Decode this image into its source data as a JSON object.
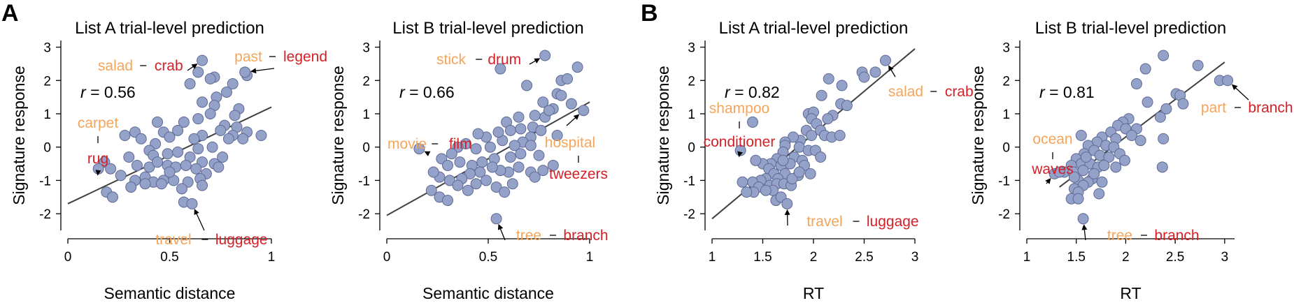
{
  "panel_letters": [
    "A",
    "B"
  ],
  "colors": {
    "point_fill": "#94a1c8",
    "point_stroke": "#5e6a94",
    "fit_line": "#404040",
    "cue_word": "#f5a55a",
    "target_word": "#d62027",
    "dash": "#000000"
  },
  "chart_data": [
    {
      "type": "scatter",
      "title": "List A trial-level prediction",
      "xlabel": "Semantic distance",
      "ylabel": "Signature response",
      "xlim": [
        0,
        1
      ],
      "ylim": [
        -2.5,
        3.2
      ],
      "xticks": [
        0,
        0.5,
        1
      ],
      "xticklabels": [
        "0",
        "0.5",
        "1"
      ],
      "yticks": [
        -2,
        -1,
        0,
        1,
        2,
        3
      ],
      "yticklabels": [
        "-2",
        "-1",
        "0",
        "1",
        "2",
        "3"
      ],
      "r_text": "= 0.56",
      "fit": [
        [
          0,
          -1.7
        ],
        [
          1,
          1.2
        ]
      ],
      "points": [
        [
          0.66,
          2.6
        ],
        [
          0.64,
          2.25
        ],
        [
          0.72,
          2.1
        ],
        [
          0.7,
          2.05
        ],
        [
          0.88,
          2.15
        ],
        [
          0.87,
          2.25
        ],
        [
          0.6,
          1.9
        ],
        [
          0.81,
          1.9
        ],
        [
          0.78,
          1.65
        ],
        [
          0.73,
          1.5
        ],
        [
          0.66,
          1.35
        ],
        [
          0.84,
          1.15
        ],
        [
          0.72,
          1.25
        ],
        [
          0.82,
          0.95
        ],
        [
          0.7,
          1.0
        ],
        [
          0.64,
          0.85
        ],
        [
          0.57,
          0.75
        ],
        [
          0.44,
          0.75
        ],
        [
          0.33,
          0.45
        ],
        [
          0.28,
          0.35
        ],
        [
          0.47,
          0.45
        ],
        [
          0.36,
          0.25
        ],
        [
          0.5,
          0.3
        ],
        [
          0.54,
          0.5
        ],
        [
          0.77,
          0.65
        ],
        [
          0.83,
          0.6
        ],
        [
          0.88,
          0.45
        ],
        [
          0.81,
          0.35
        ],
        [
          0.86,
          0.25
        ],
        [
          0.95,
          0.35
        ],
        [
          0.75,
          0.5
        ],
        [
          0.66,
          0.35
        ],
        [
          0.62,
          0.25
        ],
        [
          0.43,
          0.1
        ],
        [
          0.4,
          -0.1
        ],
        [
          0.3,
          -0.3
        ],
        [
          0.42,
          -0.25
        ],
        [
          0.49,
          -0.2
        ],
        [
          0.54,
          -0.15
        ],
        [
          0.64,
          -0.05
        ],
        [
          0.71,
          0.0
        ],
        [
          0.79,
          0.25
        ],
        [
          0.6,
          -0.3
        ],
        [
          0.66,
          -0.45
        ],
        [
          0.72,
          -0.5
        ],
        [
          0.76,
          -0.3
        ],
        [
          0.49,
          -0.55
        ],
        [
          0.53,
          -0.6
        ],
        [
          0.58,
          -0.55
        ],
        [
          0.63,
          -0.65
        ],
        [
          0.68,
          -0.8
        ],
        [
          0.4,
          -0.6
        ],
        [
          0.34,
          -0.55
        ],
        [
          0.18,
          -0.45
        ],
        [
          0.15,
          -0.65
        ],
        [
          0.21,
          -0.65
        ],
        [
          0.26,
          -0.85
        ],
        [
          0.33,
          -1.0
        ],
        [
          0.38,
          -0.9
        ],
        [
          0.42,
          -1.05
        ],
        [
          0.47,
          -1.0
        ],
        [
          0.52,
          -1.0
        ],
        [
          0.59,
          -1.05
        ],
        [
          0.65,
          -0.95
        ],
        [
          0.56,
          -1.25
        ],
        [
          0.46,
          -1.1
        ],
        [
          0.38,
          -1.1
        ],
        [
          0.31,
          -1.2
        ],
        [
          0.19,
          -1.35
        ],
        [
          0.22,
          -1.5
        ],
        [
          0.57,
          -1.65
        ],
        [
          0.61,
          -1.7
        ],
        [
          0.66,
          -1.15
        ],
        [
          0.74,
          -0.6
        ],
        [
          0.5,
          -0.75
        ],
        [
          0.44,
          -0.45
        ]
      ],
      "annotations": [
        {
          "cue": "salad",
          "target": "crab",
          "px": [
            0.66,
            2.6
          ]
        },
        {
          "cue": "past",
          "target": "legend",
          "px": [
            0.87,
            2.25
          ]
        },
        {
          "cue": "carpet",
          "target": "rug",
          "px": [
            0.15,
            -0.65
          ]
        },
        {
          "cue": "travel",
          "target": "luggage",
          "px": [
            0.61,
            -1.7
          ]
        }
      ]
    },
    {
      "type": "scatter",
      "title": "List B trial-level prediction",
      "xlabel": "Semantic distance",
      "ylabel": "Signature response",
      "xlim": [
        0,
        1
      ],
      "ylim": [
        -2.5,
        3.2
      ],
      "xticks": [
        0,
        0.5,
        1
      ],
      "xticklabels": [
        "0",
        "0.5",
        "1"
      ],
      "yticks": [
        -2,
        -1,
        0,
        1,
        2,
        3
      ],
      "yticklabels": [
        "-2",
        "-1",
        "0",
        "1",
        "2",
        "3"
      ],
      "r_text": "= 0.66",
      "fit": [
        [
          0,
          -2.05
        ],
        [
          1,
          1.35
        ]
      ],
      "points": [
        [
          0.78,
          2.75
        ],
        [
          0.56,
          2.35
        ],
        [
          0.94,
          2.4
        ],
        [
          0.86,
          2.0
        ],
        [
          0.89,
          2.05
        ],
        [
          0.69,
          1.85
        ],
        [
          0.84,
          1.6
        ],
        [
          0.86,
          1.55
        ],
        [
          0.91,
          1.3
        ],
        [
          0.77,
          1.35
        ],
        [
          0.82,
          1.15
        ],
        [
          0.78,
          0.9
        ],
        [
          0.97,
          1.1
        ],
        [
          0.73,
          0.95
        ],
        [
          0.65,
          0.9
        ],
        [
          0.59,
          0.75
        ],
        [
          0.61,
          0.5
        ],
        [
          0.66,
          0.55
        ],
        [
          0.72,
          0.6
        ],
        [
          0.76,
          0.5
        ],
        [
          0.84,
          0.35
        ],
        [
          0.71,
          0.3
        ],
        [
          0.67,
          0.15
        ],
        [
          0.63,
          0.05
        ],
        [
          0.57,
          0.2
        ],
        [
          0.55,
          0.45
        ],
        [
          0.49,
          0.3
        ],
        [
          0.45,
          0.4
        ],
        [
          0.51,
          0.0
        ],
        [
          0.44,
          -0.05
        ],
        [
          0.39,
          0.1
        ],
        [
          0.35,
          0.0
        ],
        [
          0.32,
          -0.2
        ],
        [
          0.27,
          -0.35
        ],
        [
          0.3,
          -0.55
        ],
        [
          0.36,
          -0.45
        ],
        [
          0.42,
          -0.55
        ],
        [
          0.47,
          -0.45
        ],
        [
          0.53,
          -0.35
        ],
        [
          0.61,
          -0.3
        ],
        [
          0.66,
          -0.2
        ],
        [
          0.71,
          0.05
        ],
        [
          0.75,
          -0.25
        ],
        [
          0.82,
          -0.55
        ],
        [
          0.77,
          -0.7
        ],
        [
          0.71,
          -0.75
        ],
        [
          0.65,
          -0.6
        ],
        [
          0.6,
          -0.75
        ],
        [
          0.56,
          -0.7
        ],
        [
          0.52,
          -0.6
        ],
        [
          0.46,
          -0.75
        ],
        [
          0.41,
          -0.8
        ],
        [
          0.37,
          -0.95
        ],
        [
          0.31,
          -1.0
        ],
        [
          0.26,
          -0.9
        ],
        [
          0.23,
          -0.75
        ],
        [
          0.22,
          -1.3
        ],
        [
          0.26,
          -1.5
        ],
        [
          0.3,
          -1.6
        ],
        [
          0.35,
          -1.15
        ],
        [
          0.4,
          -1.3
        ],
        [
          0.44,
          -1.1
        ],
        [
          0.49,
          -1.0
        ],
        [
          0.54,
          -1.2
        ],
        [
          0.58,
          -1.35
        ],
        [
          0.62,
          -1.1
        ],
        [
          0.73,
          -0.9
        ],
        [
          0.16,
          -0.05
        ],
        [
          0.54,
          -2.15
        ],
        [
          0.8,
          1.1
        ]
      ],
      "annotations": [
        {
          "cue": "stick",
          "target": "drum",
          "px": [
            0.78,
            2.75
          ]
        },
        {
          "cue": "movie",
          "target": "film",
          "px": [
            0.16,
            -0.05
          ]
        },
        {
          "cue": "hospital",
          "target": "tweezers",
          "px": [
            0.97,
            1.1
          ]
        },
        {
          "cue": "tree",
          "target": "branch",
          "px": [
            0.54,
            -2.15
          ]
        }
      ]
    },
    {
      "type": "scatter",
      "title": "List A trial-level prediction",
      "xlabel": "RT",
      "ylabel": "Signature response",
      "xlim": [
        1,
        3
      ],
      "ylim": [
        -2.5,
        3.2
      ],
      "xticks": [
        1,
        1.5,
        2,
        2.5,
        3
      ],
      "xticklabels": [
        "1",
        "1.5",
        "2",
        "2.5",
        "3"
      ],
      "yticks": [
        -2,
        -1,
        0,
        1,
        2,
        3
      ],
      "yticklabels": [
        "-2",
        "-1",
        "0",
        "1",
        "2",
        "3"
      ],
      "r_text": "= 0.82",
      "fit": [
        [
          1,
          -2.15
        ],
        [
          3,
          2.95
        ]
      ],
      "points": [
        [
          2.71,
          2.6
        ],
        [
          2.48,
          2.25
        ],
        [
          2.5,
          2.1
        ],
        [
          2.61,
          2.25
        ],
        [
          2.15,
          2.05
        ],
        [
          2.28,
          1.85
        ],
        [
          2.08,
          1.55
        ],
        [
          2.27,
          1.3
        ],
        [
          2.33,
          1.25
        ],
        [
          1.95,
          1.0
        ],
        [
          2.0,
          1.05
        ],
        [
          2.19,
          0.95
        ],
        [
          1.98,
          0.85
        ],
        [
          2.14,
          0.85
        ],
        [
          2.03,
          0.7
        ],
        [
          2.07,
          0.5
        ],
        [
          1.93,
          0.5
        ],
        [
          1.98,
          0.35
        ],
        [
          1.87,
          0.2
        ],
        [
          1.8,
          0.3
        ],
        [
          1.72,
          0.15
        ],
        [
          2.11,
          0.35
        ],
        [
          2.18,
          0.3
        ],
        [
          2.26,
          0.35
        ],
        [
          1.4,
          0.75
        ],
        [
          1.72,
          0.05
        ],
        [
          1.86,
          0.0
        ],
        [
          1.95,
          -0.1
        ],
        [
          2.02,
          -0.1
        ],
        [
          1.7,
          -0.15
        ],
        [
          1.64,
          -0.35
        ],
        [
          1.81,
          -0.3
        ],
        [
          1.89,
          -0.4
        ],
        [
          2.07,
          -0.3
        ],
        [
          1.58,
          -0.5
        ],
        [
          1.5,
          -0.5
        ],
        [
          1.43,
          -0.4
        ],
        [
          1.68,
          -0.55
        ],
        [
          1.77,
          -0.5
        ],
        [
          1.91,
          -0.55
        ],
        [
          1.97,
          -0.8
        ],
        [
          1.85,
          -0.85
        ],
        [
          1.56,
          -0.65
        ],
        [
          1.61,
          -0.8
        ],
        [
          1.72,
          -0.8
        ],
        [
          1.65,
          -0.95
        ],
        [
          1.53,
          -0.95
        ],
        [
          1.48,
          -1.0
        ],
        [
          1.4,
          -1.05
        ],
        [
          1.46,
          -1.2
        ],
        [
          1.57,
          -1.15
        ],
        [
          1.64,
          -1.1
        ],
        [
          1.71,
          -1.1
        ],
        [
          1.78,
          -1.15
        ],
        [
          1.6,
          -1.3
        ],
        [
          1.53,
          -1.3
        ],
        [
          1.41,
          -1.35
        ],
        [
          1.34,
          -1.35
        ],
        [
          1.63,
          -1.6
        ],
        [
          1.68,
          -1.5
        ],
        [
          1.74,
          -1.7
        ],
        [
          1.3,
          -1.05
        ],
        [
          1.28,
          -0.1
        ],
        [
          1.79,
          -0.95
        ],
        [
          1.86,
          -0.75
        ],
        [
          1.7,
          -0.4
        ]
      ],
      "annotations": [
        {
          "cue": "salad",
          "target": "crab",
          "px": [
            2.71,
            2.6
          ]
        },
        {
          "cue": "shampoo",
          "target": "conditioner",
          "px": [
            1.28,
            -0.1
          ]
        },
        {
          "cue": "travel",
          "target": "luggage",
          "px": [
            1.74,
            -1.7
          ]
        }
      ]
    },
    {
      "type": "scatter",
      "title": "List B trial-level prediction",
      "xlabel": "RT",
      "ylabel": "Signature response",
      "xlim": [
        1,
        3.1
      ],
      "ylim": [
        -2.5,
        3.2
      ],
      "xticks": [
        1,
        1.5,
        2,
        2.5,
        3
      ],
      "xticklabels": [
        "1",
        "1.5",
        "2",
        "2.5",
        "3"
      ],
      "yticks": [
        -2,
        -1,
        0,
        1,
        2,
        3
      ],
      "yticklabels": [
        "-2",
        "-1",
        "0",
        "1",
        "2",
        "3"
      ],
      "r_text": "= 0.81",
      "fit": [
        [
          1.33,
          -1.2
        ],
        [
          3.0,
          2.55
        ]
      ],
      "points": [
        [
          2.38,
          2.75
        ],
        [
          2.2,
          2.35
        ],
        [
          2.73,
          2.45
        ],
        [
          2.95,
          2.0
        ],
        [
          3.03,
          2.0
        ],
        [
          2.11,
          1.9
        ],
        [
          2.51,
          1.6
        ],
        [
          2.55,
          1.55
        ],
        [
          2.58,
          1.3
        ],
        [
          2.22,
          1.35
        ],
        [
          2.41,
          1.15
        ],
        [
          2.35,
          0.9
        ],
        [
          2.03,
          0.85
        ],
        [
          1.97,
          0.75
        ],
        [
          1.92,
          0.65
        ],
        [
          2.0,
          0.55
        ],
        [
          2.11,
          0.55
        ],
        [
          1.76,
          0.3
        ],
        [
          1.85,
          0.45
        ],
        [
          1.9,
          0.25
        ],
        [
          2.06,
          0.35
        ],
        [
          2.15,
          0.2
        ],
        [
          2.38,
          0.25
        ],
        [
          1.55,
          0.35
        ],
        [
          1.71,
          0.15
        ],
        [
          1.8,
          0.05
        ],
        [
          1.88,
          0.0
        ],
        [
          1.62,
          0.05
        ],
        [
          1.68,
          -0.1
        ],
        [
          1.58,
          -0.2
        ],
        [
          1.74,
          -0.25
        ],
        [
          1.83,
          -0.3
        ],
        [
          1.94,
          -0.2
        ],
        [
          1.5,
          -0.35
        ],
        [
          1.55,
          -0.5
        ],
        [
          1.64,
          -0.5
        ],
        [
          1.72,
          -0.6
        ],
        [
          1.78,
          -0.55
        ],
        [
          1.45,
          -0.55
        ],
        [
          1.38,
          -0.75
        ],
        [
          1.47,
          -0.75
        ],
        [
          1.57,
          -0.7
        ],
        [
          1.66,
          -0.95
        ],
        [
          1.62,
          -1.05
        ],
        [
          1.52,
          -1.0
        ],
        [
          1.57,
          -1.15
        ],
        [
          1.48,
          -1.25
        ],
        [
          1.52,
          -1.35
        ],
        [
          1.45,
          -1.55
        ],
        [
          1.52,
          -1.55
        ],
        [
          1.73,
          -1.4
        ],
        [
          1.76,
          -1.05
        ],
        [
          2.37,
          -0.6
        ],
        [
          1.28,
          -0.8
        ],
        [
          1.33,
          -0.75
        ],
        [
          1.57,
          -2.15
        ],
        [
          1.6,
          -0.3
        ],
        [
          1.9,
          -0.6
        ],
        [
          1.99,
          -0.4
        ],
        [
          1.68,
          -0.8
        ],
        [
          1.48,
          -0.9
        ]
      ],
      "annotations": [
        {
          "cue": "part",
          "target": "branch",
          "px": [
            3.03,
            2.0
          ]
        },
        {
          "cue": "ocean",
          "target": "waves",
          "px": [
            1.28,
            -0.8
          ]
        },
        {
          "cue": "tree",
          "target": "branch",
          "px": [
            1.57,
            -2.15
          ]
        }
      ]
    }
  ]
}
